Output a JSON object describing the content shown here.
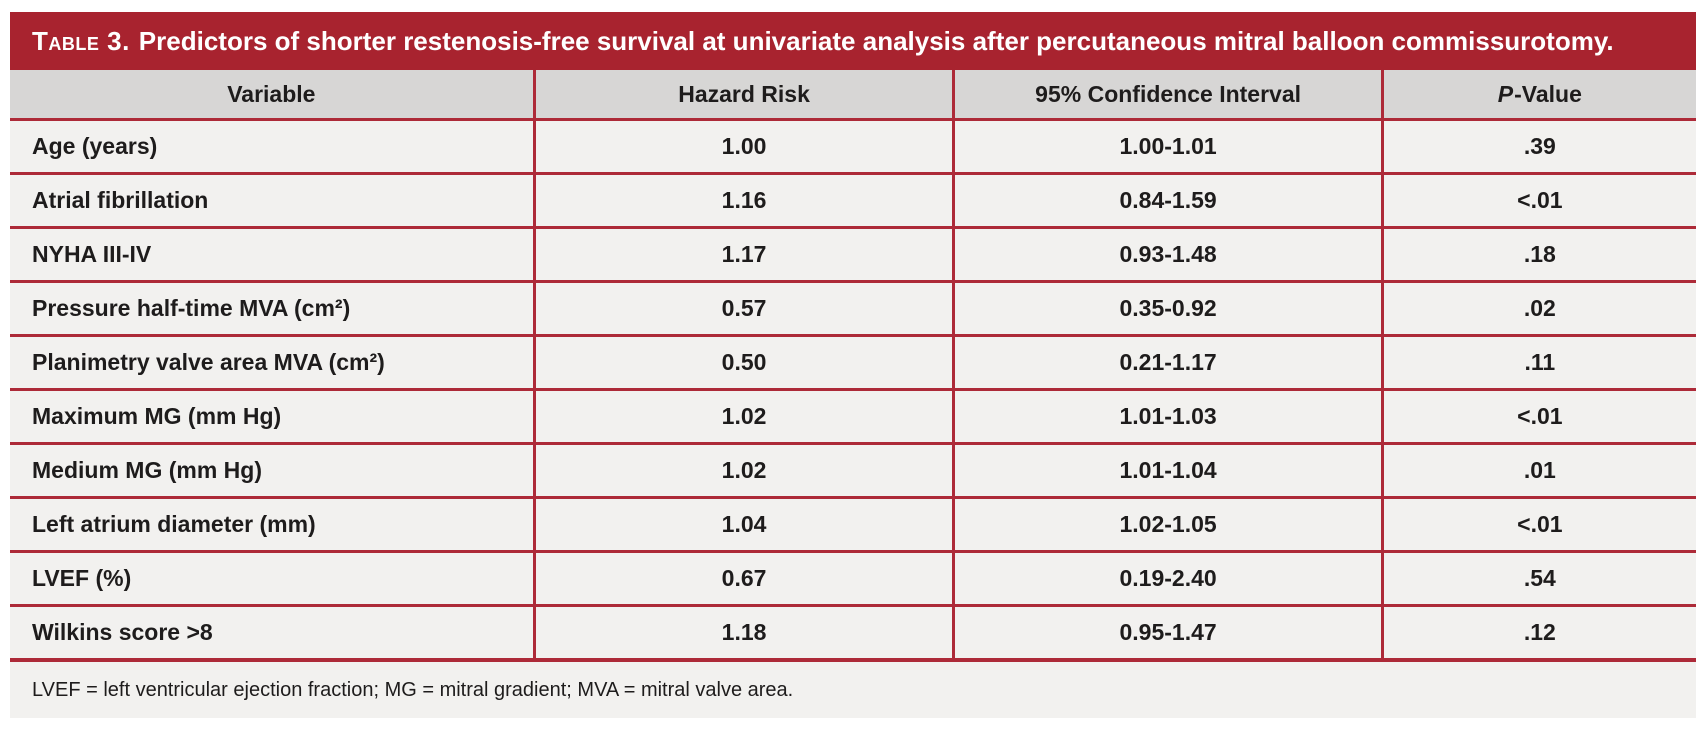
{
  "colors": {
    "title_bar_bg": "#A8232F",
    "border_red": "#AD2A38",
    "header_bg": "#D7D6D5",
    "row_bg": "#F2F1EF",
    "title_text": "#FFFFFF",
    "body_text": "#1E1C1C"
  },
  "title": {
    "label": "Table 3.",
    "text": "Predictors of shorter restenosis-free survival at univariate analysis after percutaneous mitral balloon commissurotomy."
  },
  "table": {
    "headers": {
      "variable": "Variable",
      "hazard": "Hazard Risk",
      "ci": "95% Confidence Interval",
      "p_italic": "P",
      "p_rest": "-Value"
    },
    "rows": [
      {
        "variable": "Age (years)",
        "hazard": "1.00",
        "ci": "1.00-1.01",
        "p": ".39"
      },
      {
        "variable": "Atrial fibrillation",
        "hazard": "1.16",
        "ci": "0.84-1.59",
        "p": "<.01"
      },
      {
        "variable": "NYHA III-IV",
        "hazard": "1.17",
        "ci": "0.93-1.48",
        "p": ".18"
      },
      {
        "variable": "Pressure half-time MVA (cm²)",
        "hazard": "0.57",
        "ci": "0.35-0.92",
        "p": ".02"
      },
      {
        "variable": "Planimetry valve area MVA (cm²)",
        "hazard": "0.50",
        "ci": "0.21-1.17",
        "p": ".11"
      },
      {
        "variable": "Maximum MG (mm Hg)",
        "hazard": "1.02",
        "ci": "1.01-1.03",
        "p": "<.01"
      },
      {
        "variable": "Medium MG (mm Hg)",
        "hazard": "1.02",
        "ci": "1.01-1.04",
        "p": ".01"
      },
      {
        "variable": "Left atrium diameter (mm)",
        "hazard": "1.04",
        "ci": "1.02-1.05",
        "p": "<.01"
      },
      {
        "variable": "LVEF (%)",
        "hazard": "0.67",
        "ci": "0.19-2.40",
        "p": ".54"
      },
      {
        "variable": "Wilkins score >8",
        "hazard": "1.18",
        "ci": "0.95-1.47",
        "p": ".12"
      }
    ]
  },
  "footnote": "LVEF = left ventricular ejection fraction; MG = mitral gradient; MVA = mitral valve area."
}
